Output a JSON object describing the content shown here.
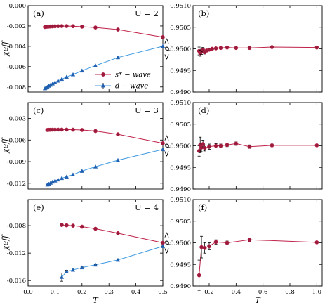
{
  "colors": {
    "s_wave": "#c0234a",
    "s_wave_fill": "#9b1b3c",
    "d_wave": "#3f9ae0",
    "d_wave_fill": "#1f5fb0"
  },
  "chart_data": [
    {
      "type": "line",
      "panel_label": "(a)",
      "u_label": "U = 2",
      "xlabel": "",
      "ylabel": "χeff",
      "xlim": [
        0.0,
        0.5
      ],
      "ylim": [
        -0.0085,
        0.0
      ],
      "yticks": [
        0.0,
        -0.002,
        -0.004,
        -0.006,
        -0.008
      ],
      "ytick_labels": [
        "0.000",
        "-0.002",
        "-0.004",
        "-0.006",
        "-0.008"
      ],
      "xticks": [
        0.0,
        0.1,
        0.2,
        0.3,
        0.4,
        0.5
      ],
      "xtick_labels": [],
      "series": [
        {
          "name": "s* − wave",
          "color_key": "s_wave",
          "marker": "circle",
          "x": [
            0.0625,
            0.0667,
            0.0714,
            0.0769,
            0.0833,
            0.0909,
            0.1,
            0.1111,
            0.125,
            0.1429,
            0.1667,
            0.2,
            0.25,
            0.3333,
            0.5
          ],
          "y": [
            -0.0021,
            -0.00208,
            -0.00207,
            -0.00206,
            -0.00205,
            -0.00204,
            -0.00203,
            -0.00202,
            -0.00201,
            -0.00201,
            -0.00202,
            -0.00207,
            -0.00215,
            -0.00235,
            -0.0031
          ]
        },
        {
          "name": "d − wave",
          "color_key": "d_wave",
          "marker": "triangle",
          "x": [
            0.0625,
            0.0667,
            0.0714,
            0.0769,
            0.0833,
            0.0909,
            0.1,
            0.1111,
            0.125,
            0.1429,
            0.1667,
            0.2,
            0.25,
            0.3333,
            0.5
          ],
          "y": [
            -0.00815,
            -0.00808,
            -0.008,
            -0.0079,
            -0.0078,
            -0.00768,
            -0.00755,
            -0.0074,
            -0.00723,
            -0.00702,
            -0.00678,
            -0.0064,
            -0.0059,
            -0.0051,
            -0.004
          ]
        }
      ],
      "legend": {
        "show": true
      }
    },
    {
      "type": "line",
      "panel_label": "(b)",
      "u_label": "",
      "xlabel": "",
      "ylabel": "< ρ >",
      "xlim": [
        0.08,
        1.04
      ],
      "ylim": [
        0.949,
        0.951
      ],
      "yticks": [
        0.949,
        0.9495,
        0.95,
        0.9505,
        0.951
      ],
      "ytick_labels": [
        "0.9490",
        "0.9495",
        "0.9500",
        "0.9505",
        "0.9510"
      ],
      "xticks": [
        0.2,
        0.4,
        0.6,
        0.8,
        1.0
      ],
      "xtick_labels": [],
      "series": [
        {
          "name": "",
          "color_key": "s_wave",
          "marker": "circle",
          "x": [
            0.125,
            0.1333,
            0.1429,
            0.1538,
            0.1667,
            0.1818,
            0.2,
            0.2222,
            0.25,
            0.2857,
            0.3333,
            0.4,
            0.5,
            0.6667,
            1.0
          ],
          "y": [
            0.94995,
            0.9499,
            0.94993,
            0.94998,
            0.94992,
            0.94996,
            0.94998,
            0.95,
            0.95001,
            0.95002,
            0.95003,
            0.95002,
            0.95002,
            0.95004,
            0.95003
          ],
          "err": [
            9e-05,
            7e-05,
            6e-05,
            5e-05,
            4e-05,
            3e-05,
            3e-05,
            2e-05,
            2e-05,
            2e-05,
            2e-05,
            1e-05,
            1e-05,
            1e-05,
            1e-05
          ]
        }
      ]
    },
    {
      "type": "line",
      "panel_label": "(c)",
      "u_label": "U = 3",
      "xlabel": "",
      "ylabel": "χeff",
      "xlim": [
        0.0,
        0.5
      ],
      "ylim": [
        -0.0128,
        -0.0008
      ],
      "yticks": [
        -0.003,
        -0.006,
        -0.009,
        -0.012
      ],
      "ytick_labels": [
        "-0.003",
        "-0.006",
        "-0.009",
        "-0.012"
      ],
      "xticks": [
        0.0,
        0.1,
        0.2,
        0.3,
        0.4,
        0.5
      ],
      "xtick_labels": [],
      "series": [
        {
          "name": "s* − wave",
          "color_key": "s_wave",
          "marker": "circle",
          "x": [
            0.0714,
            0.0769,
            0.0833,
            0.0909,
            0.1,
            0.1111,
            0.125,
            0.1429,
            0.1667,
            0.2,
            0.25,
            0.3333,
            0.5
          ],
          "y": [
            -0.0046,
            -0.00458,
            -0.00457,
            -0.00456,
            -0.00456,
            -0.00455,
            -0.00455,
            -0.00455,
            -0.00456,
            -0.0046,
            -0.00475,
            -0.0052,
            -0.00645
          ]
        },
        {
          "name": "d − wave",
          "color_key": "d_wave",
          "marker": "triangle",
          "x": [
            0.0714,
            0.0769,
            0.0833,
            0.0909,
            0.1,
            0.1111,
            0.125,
            0.1429,
            0.1667,
            0.2,
            0.25,
            0.3333,
            0.5
          ],
          "y": [
            -0.0122,
            -0.0121,
            -0.01195,
            -0.0118,
            -0.01165,
            -0.0115,
            -0.0113,
            -0.0111,
            -0.0108,
            -0.0103,
            -0.0097,
            -0.0088,
            -0.0073
          ]
        }
      ]
    },
    {
      "type": "line",
      "panel_label": "(d)",
      "u_label": "",
      "xlabel": "",
      "ylabel": "< ρ >",
      "xlim": [
        0.08,
        1.04
      ],
      "ylim": [
        0.949,
        0.951
      ],
      "yticks": [
        0.949,
        0.9495,
        0.95,
        0.9505,
        0.951
      ],
      "ytick_labels": [
        "0.9490",
        "0.9495",
        "0.9500",
        "0.9505",
        "0.9510"
      ],
      "xticks": [
        0.2,
        0.4,
        0.6,
        0.8,
        1.0
      ],
      "xtick_labels": [],
      "series": [
        {
          "name": "",
          "color_key": "s_wave",
          "marker": "circle",
          "x": [
            0.125,
            0.1333,
            0.1429,
            0.1538,
            0.1667,
            0.2,
            0.25,
            0.2857,
            0.3333,
            0.4,
            0.5,
            0.6667,
            1.0
          ],
          "y": [
            0.94988,
            0.95002,
            0.94996,
            0.95004,
            0.94995,
            0.94998,
            0.95,
            0.95,
            0.95002,
            0.95005,
            0.94998,
            0.95001,
            0.95001
          ],
          "err": [
            0.00012,
            0.00018,
            0.0001,
            9e-05,
            7e-05,
            6e-05,
            5e-05,
            4e-05,
            4e-05,
            4e-05,
            4e-05,
            3e-05,
            1e-05
          ]
        }
      ]
    },
    {
      "type": "line",
      "panel_label": "(e)",
      "u_label": "U = 4",
      "xlabel": "T",
      "ylabel": "χeff",
      "xlim": [
        0.0,
        0.5
      ],
      "ylim": [
        -0.0168,
        -0.0042
      ],
      "yticks": [
        -0.008,
        -0.012,
        -0.016
      ],
      "ytick_labels": [
        "-0.008",
        "-0.012",
        "-0.016"
      ],
      "xticks": [
        0.0,
        0.1,
        0.2,
        0.3,
        0.4,
        0.5
      ],
      "xtick_labels": [
        "0.0",
        "0.1",
        "0.2",
        "0.3",
        "0.4",
        "0.5"
      ],
      "series": [
        {
          "name": "s* − wave",
          "color_key": "s_wave",
          "marker": "circle",
          "x": [
            0.125,
            0.1429,
            0.1667,
            0.2,
            0.25,
            0.3333,
            0.5
          ],
          "y": [
            -0.0079,
            -0.00795,
            -0.008,
            -0.00815,
            -0.00845,
            -0.0091,
            -0.0105
          ]
        },
        {
          "name": "d − wave",
          "color_key": "d_wave",
          "marker": "triangle",
          "x": [
            0.125,
            0.1429,
            0.1667,
            0.2,
            0.25,
            0.3333,
            0.5
          ],
          "y": [
            -0.0155,
            -0.0147,
            -0.01445,
            -0.0141,
            -0.0137,
            -0.013,
            -0.011
          ],
          "err": [
            0.0006,
            0.0002,
            0.0001,
            8e-05,
            6e-05,
            5e-05,
            4e-05
          ]
        }
      ]
    },
    {
      "type": "line",
      "panel_label": "(f)",
      "u_label": "",
      "xlabel": "T",
      "ylabel": "< ρ >",
      "xlim": [
        0.08,
        1.04
      ],
      "ylim": [
        0.949,
        0.951
      ],
      "yticks": [
        0.949,
        0.9495,
        0.95,
        0.9505,
        0.951
      ],
      "ytick_labels": [
        "0.9490",
        "0.9495",
        "0.9500",
        "0.9505",
        "0.9510"
      ],
      "xticks": [
        0.2,
        0.4,
        0.6,
        0.8,
        1.0
      ],
      "xtick_labels": [
        "0.2",
        "0.4",
        "0.6",
        "0.8",
        "1.0"
      ],
      "series": [
        {
          "name": "",
          "color_key": "s_wave",
          "marker": "circle",
          "x": [
            0.125,
            0.1429,
            0.1667,
            0.2,
            0.25,
            0.3333,
            0.5,
            1.0
          ],
          "y": [
            0.94925,
            0.9499,
            0.94988,
            0.94992,
            0.95002,
            0.95,
            0.95007,
            0.95001
          ],
          "err": [
            0.00035,
            0.00025,
            0.00012,
            8e-05,
            5e-05,
            4e-05,
            4e-05,
            2e-05
          ]
        }
      ]
    }
  ]
}
